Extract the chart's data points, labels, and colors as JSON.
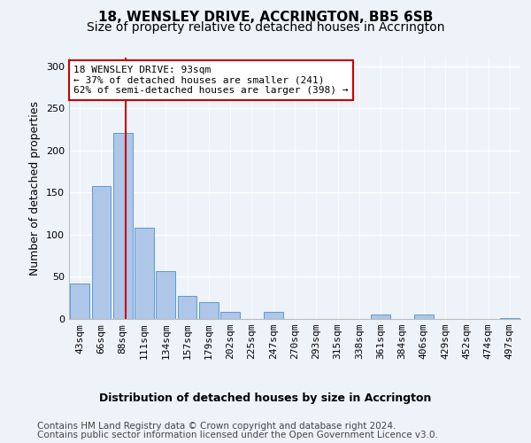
{
  "title": "18, WENSLEY DRIVE, ACCRINGTON, BB5 6SB",
  "subtitle": "Size of property relative to detached houses in Accrington",
  "xlabel": "Distribution of detached houses by size in Accrington",
  "ylabel": "Number of detached properties",
  "bar_labels": [
    "43sqm",
    "66sqm",
    "88sqm",
    "111sqm",
    "134sqm",
    "157sqm",
    "179sqm",
    "202sqm",
    "225sqm",
    "247sqm",
    "270sqm",
    "293sqm",
    "315sqm",
    "338sqm",
    "361sqm",
    "384sqm",
    "406sqm",
    "429sqm",
    "452sqm",
    "474sqm",
    "497sqm"
  ],
  "bar_values": [
    42,
    158,
    221,
    108,
    57,
    27,
    20,
    8,
    0,
    8,
    0,
    0,
    0,
    0,
    5,
    0,
    5,
    0,
    0,
    0,
    1
  ],
  "bar_color": "#aec6e8",
  "bar_edge_color": "#5b9bd5",
  "annotation_text_line1": "18 WENSLEY DRIVE: 93sqm",
  "annotation_text_line2": "← 37% of detached houses are smaller (241)",
  "annotation_text_line3": "62% of semi-detached houses are larger (398) →",
  "annotation_box_color": "#ffffff",
  "annotation_box_edge_color": "#cc0000",
  "vline_color": "#cc0000",
  "footer_line1": "Contains HM Land Registry data © Crown copyright and database right 2024.",
  "footer_line2": "Contains public sector information licensed under the Open Government Licence v3.0.",
  "ylim": [
    0,
    310
  ],
  "yticks": [
    0,
    50,
    100,
    150,
    200,
    250,
    300
  ],
  "background_color": "#eef2f9",
  "grid_color": "#ffffff",
  "title_fontsize": 11,
  "subtitle_fontsize": 10,
  "xlabel_fontsize": 9,
  "ylabel_fontsize": 9,
  "tick_fontsize": 8,
  "annotation_fontsize": 8,
  "footer_fontsize": 7.5
}
